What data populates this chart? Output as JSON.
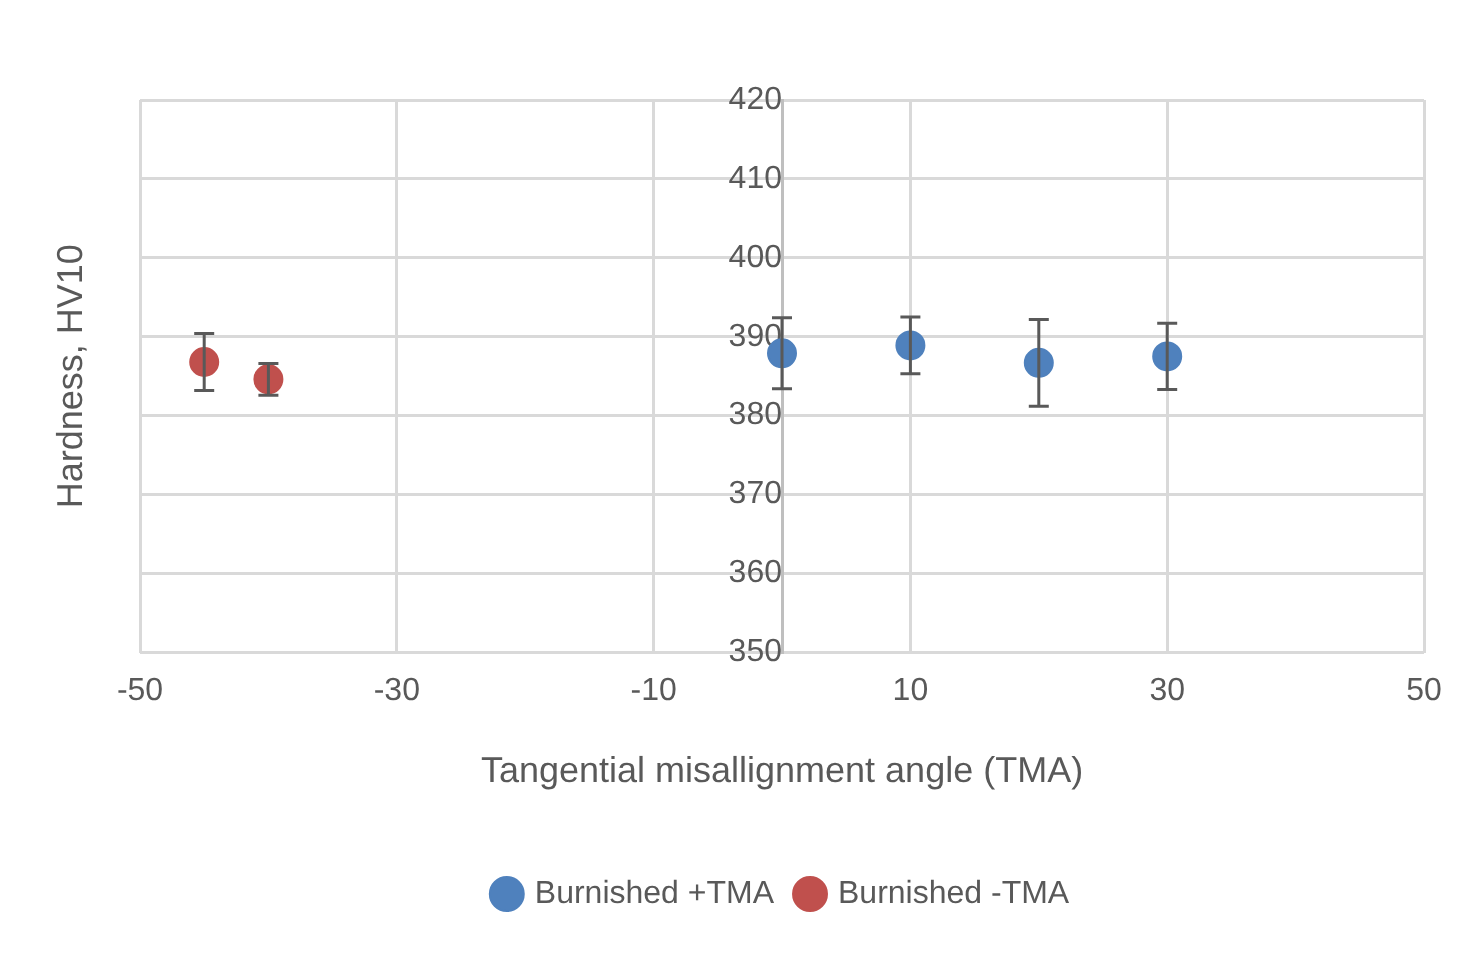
{
  "chart_data": {
    "type": "scatter",
    "xlabel": "Tangential misallignment angle (TMA)",
    "ylabel": "Hardness, HV10",
    "xlim": [
      -50,
      50
    ],
    "xticks": [
      -50,
      -30,
      -10,
      10,
      30,
      50
    ],
    "ylim": [
      350,
      420
    ],
    "yticks": [
      350,
      360,
      370,
      380,
      390,
      400,
      410,
      420
    ],
    "grid": true,
    "legend": "bottom",
    "marker": "circle",
    "series": [
      {
        "name": "Burnished +TMA",
        "color": "#4f81bd",
        "x": [
          0,
          10,
          20,
          30
        ],
        "values": [
          387.9,
          388.9,
          386.7,
          387.5
        ],
        "errors": [
          4.5,
          3.6,
          5.5,
          4.2
        ]
      },
      {
        "name": "Burnished -TMA",
        "color": "#c0504d",
        "x": [
          -45,
          -40
        ],
        "values": [
          386.8,
          384.6
        ],
        "errors": [
          3.6,
          2
        ]
      }
    ]
  }
}
